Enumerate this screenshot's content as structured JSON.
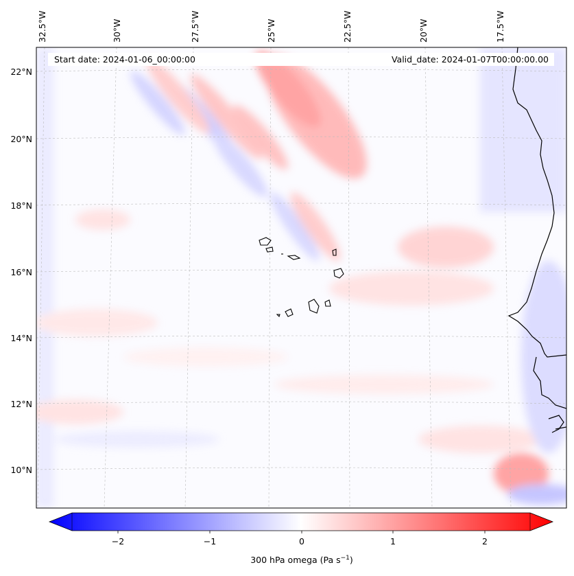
{
  "map": {
    "start_date": "Start date: 2024-01-06_00:00:00",
    "valid_date": "Valid_date: 2024-01-07T00:00:00.00",
    "lon_labels": [
      "32.5°W",
      "30°W",
      "27.5°W",
      "25°W",
      "22.5°W",
      "20°W",
      "17.5°W"
    ],
    "lat_labels": [
      "22°N",
      "20°N",
      "18°N",
      "16°N",
      "14°N",
      "12°N",
      "10°N"
    ],
    "colormap": "bwr",
    "colors": {
      "neg": "#0000ff",
      "zero": "#ffffff",
      "pos": "#ff0000",
      "coast": "#000000"
    }
  },
  "colorbar": {
    "ticks": [
      "−2",
      "−1",
      "0",
      "1",
      "2"
    ],
    "label": "300 hPa omega (Pa s",
    "label_sup": "−1",
    "label_end": ")"
  }
}
